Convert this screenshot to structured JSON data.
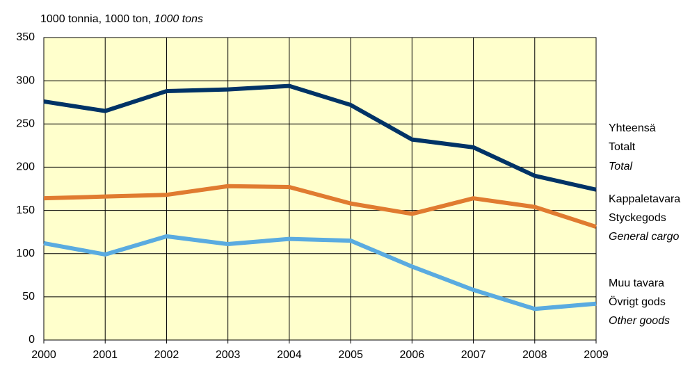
{
  "chart_data": {
    "type": "line",
    "title": {
      "text": "1000 tonnia, 1000 ton,",
      "italic": "1000 tons"
    },
    "x": [
      2000,
      2001,
      2002,
      2003,
      2004,
      2005,
      2006,
      2007,
      2008,
      2009
    ],
    "xlim": [
      2000,
      2009
    ],
    "xticks": [
      2000,
      2001,
      2002,
      2003,
      2004,
      2005,
      2006,
      2007,
      2008,
      2009
    ],
    "ylim": [
      0,
      350
    ],
    "yticks": [
      0,
      50,
      100,
      150,
      200,
      250,
      300,
      350
    ],
    "grid": true,
    "background": "#ffffcc",
    "series": [
      {
        "name": [
          "Yhteensä",
          "Totalt",
          "Total"
        ],
        "color": "#003366",
        "values": [
          276,
          265,
          288,
          290,
          294,
          272,
          232,
          223,
          190,
          174
        ]
      },
      {
        "name": [
          "Kappaletavara",
          "Styckegods",
          "General cargo"
        ],
        "color": "#e07b30",
        "values": [
          164,
          166,
          168,
          178,
          177,
          158,
          146,
          164,
          154,
          131
        ]
      },
      {
        "name": [
          "Muu tavara",
          "Övrigt gods",
          "Other goods"
        ],
        "color": "#5aabe0",
        "values": [
          112,
          99,
          120,
          111,
          117,
          115,
          85,
          58,
          36,
          42
        ]
      }
    ]
  }
}
